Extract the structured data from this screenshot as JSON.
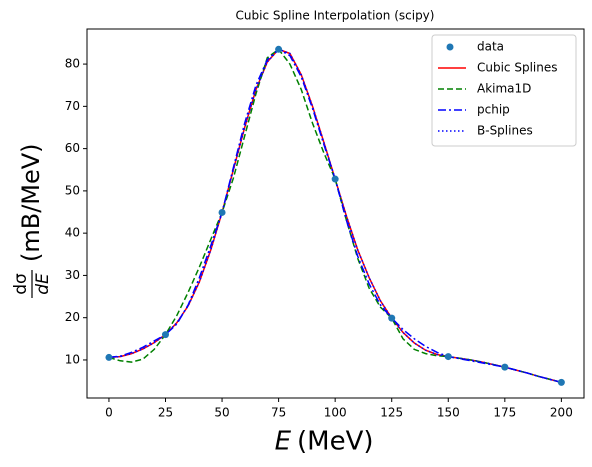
{
  "chart_data": {
    "type": "line",
    "title": "Cubic Spline Interpolation (scipy)",
    "xlabel_var": "E",
    "xlabel_unit": "(MeV)",
    "ylabel_num": "dσ",
    "ylabel_den": "dE",
    "ylabel_unit": "(mB/MeV)",
    "xlim": [
      -9.7,
      210
    ],
    "ylim": [
      1.0,
      88.3
    ],
    "xticks": [
      0,
      25,
      50,
      75,
      100,
      125,
      150,
      175,
      200
    ],
    "yticks": [
      10,
      20,
      30,
      40,
      50,
      60,
      70,
      80
    ],
    "legend": "upper right",
    "points": {
      "name": "data",
      "color": "#1f77b4",
      "x": [
        0,
        25,
        50,
        75,
        100,
        125,
        150,
        175,
        200
      ],
      "values": [
        10.6,
        16.0,
        44.9,
        83.5,
        52.8,
        19.9,
        10.8,
        8.3,
        4.7
      ]
    },
    "x": [
      0,
      5,
      10,
      15,
      20,
      25,
      30,
      35,
      40,
      45,
      50,
      55,
      60,
      65,
      70,
      75,
      80,
      85,
      90,
      95,
      100,
      105,
      110,
      115,
      120,
      125,
      130,
      135,
      140,
      145,
      150,
      155,
      160,
      165,
      170,
      175,
      180,
      185,
      190,
      195,
      200
    ],
    "series": [
      {
        "name": "Cubic Splines",
        "color": "#ff0000",
        "dash": "none",
        "values": [
          10.6,
          10.8,
          11.5,
          12.6,
          14.1,
          16.0,
          18.8,
          22.8,
          28.5,
          36,
          44.9,
          55,
          65,
          74,
          80.5,
          83.5,
          82.5,
          77.5,
          70,
          61.5,
          52.8,
          44,
          36,
          29.5,
          24,
          19.9,
          16.5,
          14,
          12.3,
          11.3,
          10.8,
          10.4,
          10,
          9.5,
          8.9,
          8.3,
          7.6,
          6.9,
          6.1,
          5.4,
          4.7
        ]
      },
      {
        "name": "Akima1D",
        "color": "#008000",
        "dash": "6,3",
        "values": [
          10.6,
          9.8,
          9.5,
          10.2,
          12.5,
          16.0,
          20.5,
          26,
          32,
          38.5,
          44.9,
          53,
          63,
          73,
          81.5,
          83.5,
          80,
          74,
          66,
          59,
          52.8,
          43,
          34,
          27,
          22.5,
          19.9,
          15,
          12.5,
          11.5,
          11,
          10.8,
          10.4,
          10,
          9.5,
          8.9,
          8.3,
          7.6,
          6.9,
          6.1,
          5.4,
          4.7
        ]
      },
      {
        "name": "pchip",
        "color": "#0000ff",
        "dash": "8,3,2,3",
        "values": [
          10.6,
          10.9,
          11.8,
          13,
          14.5,
          16.0,
          18.5,
          23,
          29.5,
          37,
          44.9,
          55.5,
          66,
          75,
          81,
          83.5,
          82,
          77,
          69.5,
          61,
          52.8,
          43,
          34.5,
          28,
          23,
          19.9,
          17.2,
          15,
          13.2,
          11.8,
          10.8,
          10.3,
          9.8,
          9.3,
          8.8,
          8.3,
          7.6,
          6.9,
          6.1,
          5.4,
          4.7
        ]
      },
      {
        "name": "B-Splines",
        "color": "#0000ff",
        "dash": "1.5,2.5",
        "values": [
          10.6,
          10.8,
          11.5,
          12.6,
          14.1,
          16.0,
          18.8,
          22.8,
          28.5,
          36,
          44.9,
          55,
          65,
          74,
          80.5,
          83.5,
          82.5,
          77.5,
          70,
          61.5,
          52.8,
          44,
          36,
          29.5,
          24,
          19.9,
          16.5,
          14,
          12.3,
          11.3,
          10.8,
          10.4,
          10,
          9.5,
          8.9,
          8.3,
          7.6,
          6.9,
          6.1,
          5.4,
          4.7
        ]
      }
    ]
  }
}
